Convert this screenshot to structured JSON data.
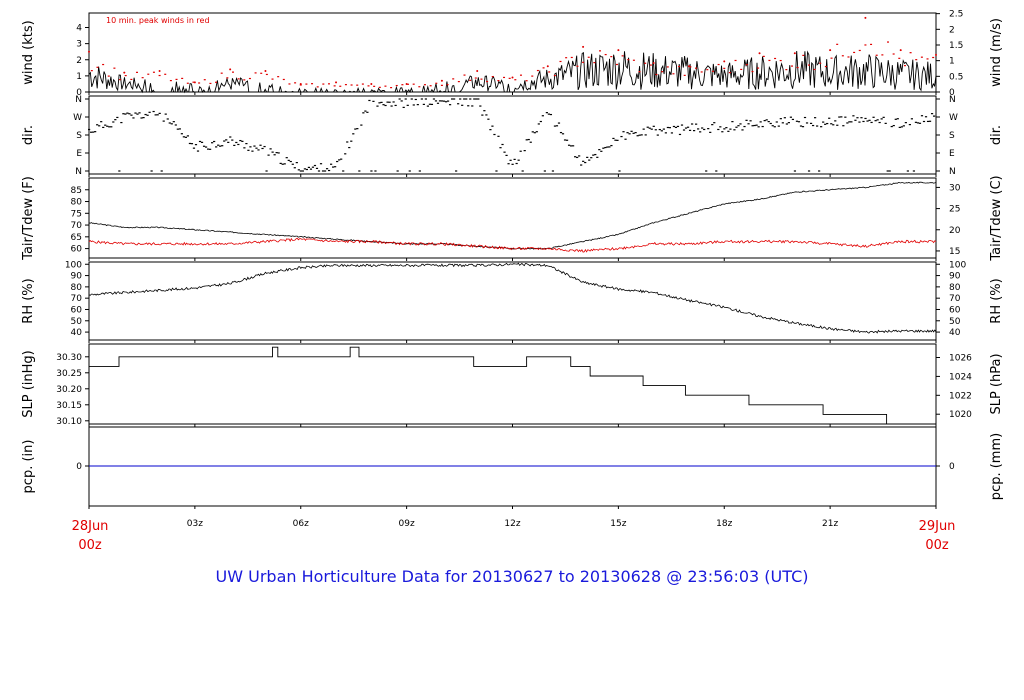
{
  "footer_title": "UW Urban Horticulture Data for 20130627  to  20130628 @ 23:56:03  (UTC)",
  "x_axis": {
    "ticks": [
      "03z",
      "06z",
      "09z",
      "12z",
      "15z",
      "18z",
      "21z"
    ],
    "start_date": "28Jun",
    "start_hour": "00z",
    "end_date": "29Jun",
    "end_hour": "00z"
  },
  "colors": {
    "series": "#000000",
    "peak": "#e00000",
    "precip": "#0000cc",
    "date": "#e00000",
    "footer": "#1a1adb"
  },
  "chart_data": [
    {
      "type": "line",
      "panel": "wind",
      "ylabel_left": "wind (kts)",
      "ylabel_right": "wind (m/s)",
      "annotation": "10 min. peak winds in red",
      "ylim": [
        0,
        4.9
      ],
      "yticks_left": [
        0,
        1,
        2,
        3,
        4
      ],
      "yticks_right": [
        0,
        0.5,
        1,
        1.5,
        2,
        2.5
      ],
      "x": [
        0,
        1,
        2,
        3,
        4,
        5,
        6,
        7,
        8,
        9,
        10,
        11,
        12,
        13,
        14,
        15,
        16,
        17,
        18,
        19,
        20,
        21,
        22,
        23,
        24
      ],
      "series": [
        {
          "name": "wind",
          "values": [
            1.1,
            0.5,
            0.4,
            0.3,
            0.5,
            0.4,
            0.2,
            0.2,
            0.1,
            0.2,
            0.3,
            0.6,
            0.4,
            0.8,
            1.3,
            1.5,
            1.3,
            1.2,
            1.0,
            1.2,
            1.4,
            1.2,
            1.3,
            1.1,
            1.0
          ]
        },
        {
          "name": "peak",
          "values": [
            2.5,
            1.2,
            1.3,
            0.6,
            1.4,
            1.3,
            0.5,
            0.6,
            0.5,
            0.5,
            0.7,
            1.3,
            0.9,
            1.6,
            2.8,
            2.6,
            1.8,
            1.6,
            1.9,
            2.4,
            2.4,
            2.6,
            4.6,
            2.6,
            2.3
          ]
        }
      ]
    },
    {
      "type": "scatter",
      "panel": "dir",
      "ylabel_left": "dir.",
      "ylabel_right": "dir.",
      "ytick_labels": [
        "N",
        "E",
        "S",
        "W",
        "N"
      ],
      "x": [
        0,
        1,
        2,
        3,
        4,
        5,
        6,
        7,
        8,
        9,
        10,
        11,
        12,
        13,
        14,
        15,
        16,
        17,
        18,
        19,
        20,
        21,
        22,
        23,
        24
      ],
      "values": [
        200,
        270,
        290,
        120,
        150,
        100,
        10,
        15,
        350,
        340,
        345,
        350,
        20,
        300,
        30,
        170,
        200,
        210,
        220,
        240,
        245,
        245,
        255,
        240,
        265
      ]
    },
    {
      "type": "line",
      "panel": "temp",
      "ylabel_left": "Tair/Tdew (F)",
      "ylabel_right": "Tair/Tdew (C)",
      "ylim": [
        56,
        90
      ],
      "yticks_left": [
        60,
        65,
        70,
        75,
        80,
        85
      ],
      "yticks_right": [
        15,
        20,
        25,
        30
      ],
      "x": [
        0,
        1,
        2,
        3,
        4,
        5,
        6,
        7,
        8,
        9,
        10,
        11,
        12,
        13,
        14,
        15,
        16,
        17,
        18,
        19,
        20,
        21,
        22,
        23,
        24
      ],
      "series": [
        {
          "name": "Tair",
          "values": [
            71,
            69,
            69,
            68,
            67,
            66,
            65,
            64,
            63,
            62,
            62,
            61,
            60,
            60,
            63,
            66,
            71,
            75,
            79,
            81,
            84,
            85,
            86,
            88,
            88
          ]
        },
        {
          "name": "Tdew",
          "values": [
            63,
            62,
            62,
            62,
            62,
            63,
            64,
            63,
            63,
            62,
            62,
            61,
            60,
            60,
            59,
            60,
            62,
            62,
            63,
            63,
            63,
            62,
            61,
            63,
            63
          ]
        }
      ]
    },
    {
      "type": "line",
      "panel": "rh",
      "ylabel_left": "RH (%)",
      "ylabel_right": "RH (%)",
      "ylim": [
        33,
        102
      ],
      "yticks": [
        40,
        50,
        60,
        70,
        80,
        90,
        100
      ],
      "x": [
        0,
        1,
        2,
        3,
        4,
        5,
        6,
        7,
        8,
        9,
        10,
        11,
        12,
        13,
        14,
        15,
        16,
        17,
        18,
        19,
        20,
        21,
        22,
        23,
        24
      ],
      "values": [
        73,
        75,
        77,
        79,
        83,
        92,
        97,
        99,
        99,
        99,
        99,
        99,
        100,
        99,
        84,
        78,
        75,
        68,
        62,
        54,
        48,
        43,
        40,
        41,
        41
      ]
    },
    {
      "type": "line",
      "panel": "slp",
      "ylabel_left": "SLP (inHg)",
      "ylabel_right": "SLP (hPa)",
      "ylim": [
        30.09,
        30.34
      ],
      "yticks_left": [
        "30.10",
        "30.15",
        "30.20",
        "30.25",
        "30.30"
      ],
      "yticks_right": [
        "1020",
        "1022",
        "1024",
        "1026"
      ],
      "steps": [
        [
          0,
          30.27
        ],
        [
          0.85,
          30.3
        ],
        [
          5.2,
          30.33
        ],
        [
          5.35,
          30.3
        ],
        [
          7.4,
          30.33
        ],
        [
          7.65,
          30.3
        ],
        [
          10.9,
          30.27
        ],
        [
          12.4,
          30.3
        ],
        [
          13.65,
          30.27
        ],
        [
          14.2,
          30.24
        ],
        [
          15.7,
          30.21
        ],
        [
          16.9,
          30.18
        ],
        [
          18.7,
          30.15
        ],
        [
          20.8,
          30.12
        ],
        [
          22.6,
          30.09
        ],
        [
          24,
          30.09
        ]
      ]
    },
    {
      "type": "line",
      "panel": "pcp",
      "ylabel_left": "pcp. (in)",
      "ylabel_right": "pcp. (mm)",
      "yticks_left": [
        "0"
      ],
      "yticks_right": [
        "0"
      ],
      "x": [
        0,
        24
      ],
      "values": [
        0,
        0
      ]
    }
  ]
}
